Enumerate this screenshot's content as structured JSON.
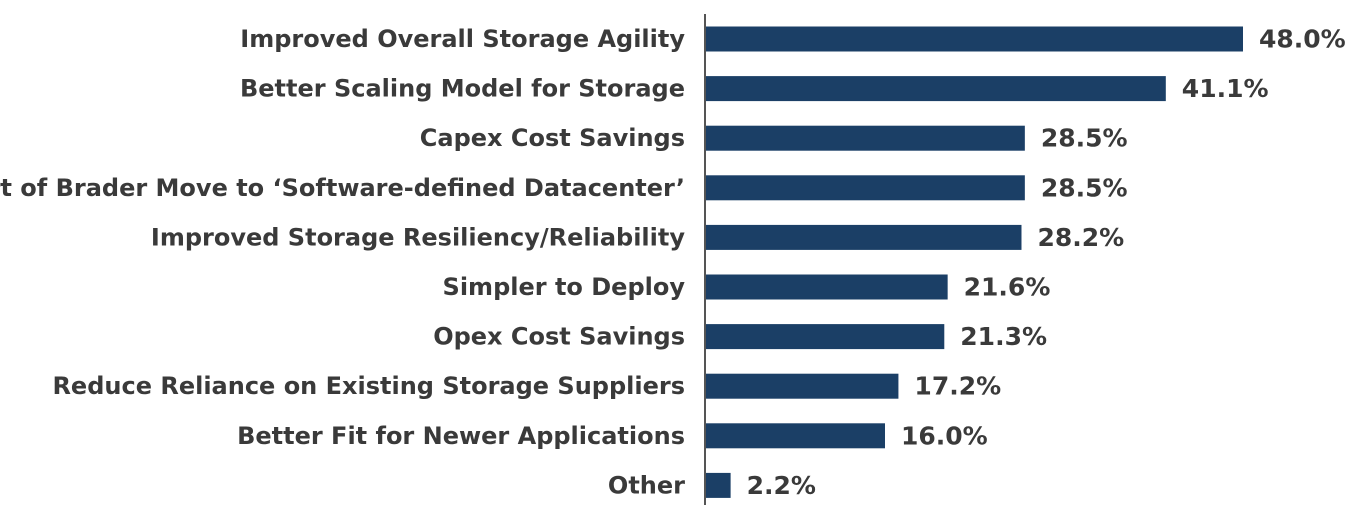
{
  "chart_data": {
    "type": "bar",
    "orientation": "horizontal",
    "categories": [
      "Improved Overall Storage Agility",
      "Better Scaling Model for Storage",
      "Capex Cost Savings",
      "Part of Brader Move to ‘Software-defined Datacenter’",
      "Improved Storage Resiliency/Reliability",
      "Simpler to Deploy",
      "Opex Cost Savings",
      "Reduce Reliance on Existing Storage Suppliers",
      "Better Fit for Newer Applications",
      "Other"
    ],
    "values": [
      48.0,
      41.1,
      28.5,
      28.5,
      28.2,
      21.6,
      21.3,
      17.2,
      16.0,
      2.2
    ],
    "value_labels": [
      "48.0%",
      "41.1%",
      "28.5%",
      "28.5%",
      "28.2%",
      "21.6%",
      "21.3%",
      "17.2%",
      "16.0%",
      "2.2%"
    ],
    "title": "",
    "xlabel": "",
    "ylabel": "",
    "xlim": [
      0,
      48
    ],
    "grid": false,
    "legend": "none",
    "bar_color": "#1b3f66",
    "axis_color": "#555555",
    "text_color": "#3a3a3a"
  }
}
